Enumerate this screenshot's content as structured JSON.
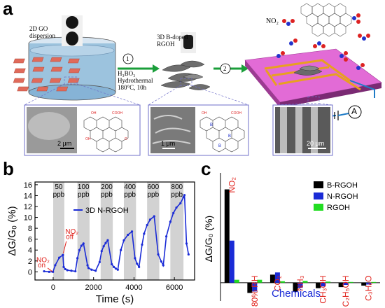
{
  "panel_a": {
    "label": "a",
    "dispersion": {
      "line1": "2D GO",
      "line2": "dispersion"
    },
    "step1": {
      "num": "1",
      "reagent": "H₃BO₃",
      "method": "Hydrothermal",
      "conditions": "180°C, 10h"
    },
    "product": {
      "line1": "3D B-doped",
      "line2": "RGOH"
    },
    "step2": {
      "num": "2"
    },
    "gas_label": "NO₂",
    "ammeter": "A",
    "scalebars": [
      "2 μm",
      "1 μm",
      "20 μm"
    ],
    "colors": {
      "arrow": "#1a9e3a",
      "electrode": "#e8a020",
      "substrate": "#e26bd6",
      "flakes": "#e06a5a",
      "frame": "#6f6fc8"
    }
  },
  "panel_b": {
    "label": "b",
    "ylabel": "ΔG/G₀ (%)",
    "xlabel": "Time (s)",
    "legend": "3D N-RGOH",
    "annotations": {
      "on": [
        "NO₂",
        "on"
      ],
      "off": [
        "NO₂",
        "off"
      ]
    },
    "conc_labels": [
      {
        "v": "50",
        "u": "ppb"
      },
      {
        "v": "100",
        "u": "ppb"
      },
      {
        "v": "200",
        "u": "ppb"
      },
      {
        "v": "400",
        "u": "ppb"
      },
      {
        "v": "600",
        "u": "ppb"
      },
      {
        "v": "800",
        "u": "ppb"
      }
    ],
    "line_color": "#1a2bd6",
    "annotation_color": "#e0201a"
  },
  "panel_c": {
    "label": "c",
    "ylabel": "ΔG/G₀ (%)",
    "xlabel": "Chemicals",
    "categories": [
      "NO₂",
      "80% RH",
      "CO₂",
      "NH₃",
      "CH₃OH",
      "C₂H₅OH",
      "C₃H₆O"
    ],
    "category_color": "#e0201a",
    "xlabel_color": "#1a2bd6"
  },
  "chart_data": [
    {
      "type": "line",
      "title": "",
      "xlabel": "Time (s)",
      "ylabel": "ΔG/G₀ (%)",
      "xlim": [
        -900,
        7000
      ],
      "ylim": [
        -1.5,
        16.5
      ],
      "xticks": [
        0,
        2000,
        4000,
        6000
      ],
      "yticks": [
        0,
        2,
        4,
        6,
        8,
        10,
        12,
        14,
        16
      ],
      "series": [
        {
          "name": "3D N-RGOH",
          "x": [
            -450,
            -200,
            -10,
            100,
            300,
            480,
            520,
            600,
            700,
            900,
            1100,
            1200,
            1300,
            1400,
            1500,
            1700,
            1750,
            1900,
            2100,
            2300,
            2400,
            2500,
            2600,
            2700,
            2900,
            3000,
            3100,
            3200,
            3350,
            3500,
            3700,
            3900,
            4050,
            4150,
            4250,
            4400,
            4500,
            4650,
            4800,
            5000,
            5200,
            5350,
            5450,
            5600,
            5800,
            5950,
            6100,
            6300,
            6450,
            6500,
            6600,
            6700
          ],
          "y": [
            0.1,
            0.0,
            0.0,
            1.2,
            2.6,
            3.1,
            0.9,
            0.5,
            0.3,
            0.2,
            0.1,
            2.5,
            4.0,
            4.8,
            5.2,
            1.2,
            0.7,
            0.4,
            0.2,
            1.8,
            3.8,
            4.7,
            5.3,
            5.8,
            1.4,
            0.9,
            0.6,
            0.4,
            4.0,
            5.8,
            6.8,
            7.4,
            2.5,
            1.5,
            0.9,
            5.0,
            7.0,
            8.6,
            9.6,
            10.2,
            3.2,
            1.9,
            1.2,
            6.5,
            9.2,
            10.8,
            11.8,
            12.6,
            13.7,
            14.1,
            5.2,
            3.2
          ]
        }
      ]
    },
    {
      "type": "bar",
      "title": "",
      "xlabel": "Chemicals",
      "ylabel": "ΔG/G₀ (%)",
      "ylim": [
        -5,
        30
      ],
      "categories": [
        "NO₂",
        "80% RH",
        "CO₂",
        "NH₃",
        "CH₃OH",
        "C₂H₅OH",
        "C₃H₆O"
      ],
      "legend_position": "top-right",
      "series": [
        {
          "name": "B-RGOH",
          "color": "#000000",
          "values": [
            25.5,
            -2.8,
            2.2,
            -2.5,
            -1.5,
            -1.2,
            -0.8
          ]
        },
        {
          "name": "N-RGOH",
          "color": "#1a2bd6",
          "values": [
            11.5,
            -2.4,
            2.8,
            -1.4,
            -1.0,
            -0.6,
            -0.5
          ]
        },
        {
          "name": "RGOH",
          "color": "#22dd22",
          "values": [
            0.8,
            0.8,
            0.4,
            0.5,
            0.3,
            0.2,
            0.2
          ]
        }
      ]
    }
  ]
}
